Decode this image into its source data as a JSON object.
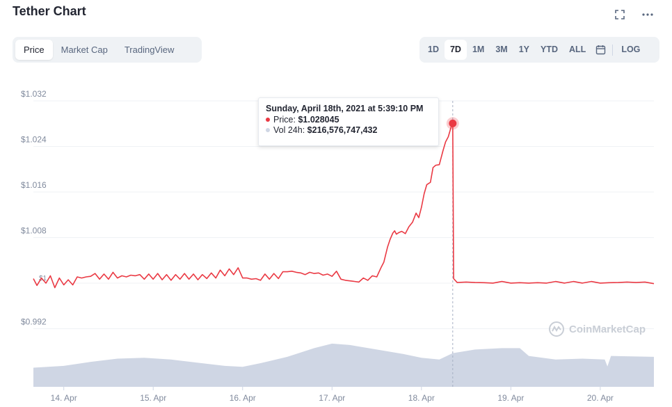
{
  "header": {
    "title": "Tether Chart"
  },
  "icons": {
    "fullscreen": "fullscreen-icon",
    "more": "more-icon",
    "calendar": "calendar-icon",
    "watermark_logo": "coinmarketcap-logo-icon"
  },
  "tabs": [
    {
      "label": "Price",
      "active": true
    },
    {
      "label": "Market Cap",
      "active": false
    },
    {
      "label": "TradingView",
      "active": false
    }
  ],
  "ranges": [
    {
      "label": "1D",
      "active": false
    },
    {
      "label": "7D",
      "active": true
    },
    {
      "label": "1M",
      "active": false
    },
    {
      "label": "3M",
      "active": false
    },
    {
      "label": "1Y",
      "active": false
    },
    {
      "label": "YTD",
      "active": false
    },
    {
      "label": "ALL",
      "active": false
    }
  ],
  "log_label": "LOG",
  "tooltip": {
    "date": "Sunday, April 18th, 2021 at 5:39:10 PM",
    "price_label": "Price:",
    "price_value": "$1.028045",
    "vol_label": "Vol 24h:",
    "vol_value": "$216,576,747,432"
  },
  "watermark": "CoinMarketCap",
  "colors": {
    "price_line": "#ea3943",
    "volume_fill": "#cfd6e4",
    "grid": "#eff2f5",
    "axis_text": "#808a9d",
    "crosshair": "#a6b0c3"
  },
  "chart_data": {
    "type": "line",
    "title": "",
    "xlabel": "",
    "ylabel": "",
    "ylim": [
      0.984,
      1.036
    ],
    "y_ticks": [
      "$1.032",
      "$1.024",
      "$1.016",
      "$1.008",
      "$0.992"
    ],
    "y_tick_values": [
      1.032,
      1.024,
      1.016,
      1.008,
      0.992
    ],
    "dot_label": "$1",
    "x_ticks": [
      "14. Apr",
      "15. Apr",
      "16. Apr",
      "17. Apr",
      "18. Apr",
      "19. Apr",
      "20. Apr"
    ],
    "x_tick_days": [
      1,
      2,
      3,
      4,
      5,
      6,
      7
    ],
    "x_range_days": [
      0.66,
      7.6
    ],
    "highlight": {
      "day": 5.35,
      "price": 1.028045
    },
    "series": [
      {
        "name": "Price",
        "points": [
          [
            0.66,
            1.0005
          ],
          [
            0.7,
            0.9999
          ],
          [
            0.75,
            1.0006
          ],
          [
            0.8,
            1.0003
          ],
          [
            0.85,
            1.001
          ],
          [
            0.9,
            0.9995
          ],
          [
            0.95,
            1.0006
          ],
          [
            1.0,
            1.0
          ],
          [
            1.05,
            1.0003
          ],
          [
            1.1,
            1.0
          ],
          [
            1.15,
            1.0008
          ],
          [
            1.2,
            1.0012
          ],
          [
            1.25,
            1.0008
          ],
          [
            1.3,
            1.0015
          ],
          [
            1.35,
            1.0014
          ],
          [
            1.4,
            1.001
          ],
          [
            1.45,
            1.0013
          ],
          [
            1.5,
            1.001
          ],
          [
            1.55,
            1.0016
          ],
          [
            1.6,
            1.0012
          ],
          [
            1.65,
            1.001
          ],
          [
            1.7,
            1.0014
          ],
          [
            1.75,
            1.0011
          ],
          [
            1.8,
            1.0016
          ],
          [
            1.85,
            1.0012
          ],
          [
            1.9,
            1.001
          ],
          [
            1.95,
            1.0013
          ],
          [
            2.0,
            1.001
          ],
          [
            2.05,
            1.0014
          ],
          [
            2.1,
            1.0009
          ],
          [
            2.15,
            1.0012
          ],
          [
            2.2,
            1.0008
          ],
          [
            2.25,
            1.0012
          ],
          [
            2.3,
            1.001
          ],
          [
            2.35,
            1.0014
          ],
          [
            2.4,
            1.001
          ],
          [
            2.45,
            1.0013
          ],
          [
            2.5,
            1.0009
          ],
          [
            2.55,
            1.0012
          ],
          [
            2.6,
            1.0011
          ],
          [
            2.65,
            1.0015
          ],
          [
            2.7,
            1.0012
          ],
          [
            2.75,
            1.002
          ],
          [
            2.8,
            1.0016
          ],
          [
            2.85,
            1.0022
          ],
          [
            2.9,
            1.0018
          ],
          [
            2.95,
            1.0024
          ],
          [
            3.0,
            1.0012
          ],
          [
            3.05,
            1.0006
          ],
          [
            3.1,
            1.001
          ],
          [
            3.15,
            1.0005
          ],
          [
            3.2,
            1.0008
          ],
          [
            3.25,
            1.0013
          ],
          [
            3.3,
            1.001
          ],
          [
            3.35,
            1.0014
          ],
          [
            3.4,
            1.0011
          ],
          [
            3.45,
            1.0017
          ],
          [
            3.5,
            1.0023
          ],
          [
            3.55,
            1.0018
          ],
          [
            3.6,
            1.0022
          ],
          [
            3.65,
            1.0015
          ],
          [
            3.7,
            1.0018
          ],
          [
            3.75,
            1.0016
          ],
          [
            3.8,
            1.002
          ],
          [
            3.85,
            1.0015
          ],
          [
            3.9,
            1.0017
          ],
          [
            3.95,
            1.0013
          ],
          [
            4.0,
            1.0015
          ],
          [
            4.05,
            1.0018
          ],
          [
            4.1,
            1.001
          ],
          [
            4.15,
            1.0002
          ],
          [
            4.2,
            1.0007
          ],
          [
            4.25,
            1.0
          ],
          [
            4.3,
            1.0005
          ],
          [
            4.35,
            1.0006
          ],
          [
            4.4,
            1.0008
          ],
          [
            4.45,
            1.001
          ],
          [
            4.5,
            1.0014
          ],
          [
            4.55,
            1.0025
          ],
          [
            4.58,
            1.004
          ],
          [
            4.62,
            1.006
          ],
          [
            4.65,
            1.008
          ],
          [
            4.68,
            1.0085
          ],
          [
            4.7,
            1.0095
          ],
          [
            4.72,
            1.0083
          ],
          [
            4.75,
            1.0092
          ],
          [
            4.78,
            1.0088
          ],
          [
            4.82,
            1.009
          ],
          [
            4.86,
            1.0096
          ],
          [
            4.9,
            1.011
          ],
          [
            4.94,
            1.012
          ],
          [
            4.97,
            1.0118
          ],
          [
            5.0,
            1.013
          ],
          [
            5.03,
            1.016
          ],
          [
            5.06,
            1.017
          ],
          [
            5.1,
            1.018
          ],
          [
            5.13,
            1.02
          ],
          [
            5.16,
            1.021
          ],
          [
            5.2,
            1.0205
          ],
          [
            5.24,
            1.0235
          ],
          [
            5.27,
            1.0245
          ],
          [
            5.3,
            1.026
          ],
          [
            5.33,
            1.027
          ],
          [
            5.35,
            1.028045
          ],
          [
            5.36,
            1.0005
          ],
          [
            5.4,
            1.0002
          ],
          [
            5.5,
            1.0001
          ],
          [
            5.6,
            1.0002
          ],
          [
            5.7,
            1.0
          ],
          [
            5.8,
            1.0001
          ],
          [
            5.9,
            1.0002
          ],
          [
            6.0,
            1.0001
          ],
          [
            6.1,
            1.0
          ],
          [
            6.2,
            1.0001
          ],
          [
            6.3,
            1.0
          ],
          [
            6.4,
            1.0001
          ],
          [
            6.5,
            1.0002
          ],
          [
            6.6,
            1.0001
          ],
          [
            6.7,
            1.0002
          ],
          [
            6.8,
            1.0001
          ],
          [
            6.9,
            1.0002
          ],
          [
            7.0,
            1.0001
          ],
          [
            7.1,
            1.0
          ],
          [
            7.2,
            1.0002
          ],
          [
            7.3,
            1.0001
          ],
          [
            7.4,
            1.0002
          ],
          [
            7.5,
            1.0001
          ],
          [
            7.6,
            1.0
          ]
        ]
      },
      {
        "name": "Vol 24h",
        "volume_scale_max": 1.0,
        "points": [
          [
            0.66,
            0.42
          ],
          [
            1.0,
            0.46
          ],
          [
            1.3,
            0.55
          ],
          [
            1.6,
            0.62
          ],
          [
            1.9,
            0.64
          ],
          [
            2.2,
            0.6
          ],
          [
            2.5,
            0.53
          ],
          [
            2.8,
            0.46
          ],
          [
            3.0,
            0.44
          ],
          [
            3.2,
            0.52
          ],
          [
            3.5,
            0.66
          ],
          [
            3.8,
            0.85
          ],
          [
            4.0,
            0.95
          ],
          [
            4.2,
            0.92
          ],
          [
            4.5,
            0.82
          ],
          [
            4.8,
            0.72
          ],
          [
            5.0,
            0.64
          ],
          [
            5.2,
            0.6
          ],
          [
            5.35,
            0.74
          ],
          [
            5.6,
            0.82
          ],
          [
            5.9,
            0.85
          ],
          [
            6.1,
            0.85
          ],
          [
            6.2,
            0.68
          ],
          [
            6.5,
            0.6
          ],
          [
            6.8,
            0.62
          ],
          [
            7.05,
            0.6
          ],
          [
            7.08,
            0.45
          ],
          [
            7.12,
            0.68
          ],
          [
            7.6,
            0.66
          ]
        ]
      }
    ]
  }
}
